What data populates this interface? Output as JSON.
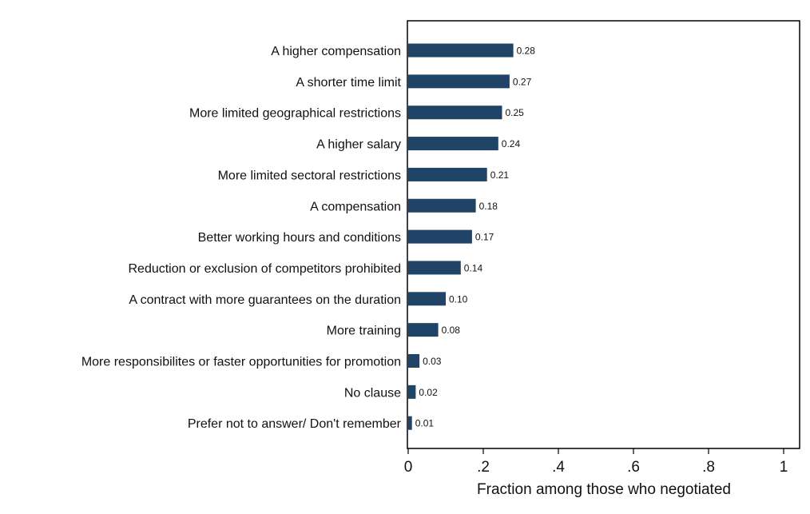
{
  "chart_data": {
    "type": "bar",
    "orientation": "horizontal",
    "categories": [
      "A higher compensation",
      "A shorter time limit",
      "More limited geographical restrictions",
      "A higher salary",
      "More limited sectoral restrictions",
      "A compensation",
      "Better working hours and conditions",
      "Reduction or exclusion of competitors prohibited",
      "A contract with more guarantees on the duration",
      "More training",
      "More responsibilites or faster opportunities for promotion",
      "No clause",
      "Prefer not to answer/ Don't remember"
    ],
    "values": [
      0.28,
      0.27,
      0.25,
      0.24,
      0.21,
      0.18,
      0.17,
      0.14,
      0.1,
      0.08,
      0.03,
      0.02,
      0.01
    ],
    "value_labels": [
      "0.28",
      "0.27",
      "0.25",
      "0.24",
      "0.21",
      "0.18",
      "0.17",
      "0.14",
      "0.10",
      "0.08",
      "0.03",
      "0.02",
      "0.01"
    ],
    "xlabel": "Fraction among those who negotiated",
    "xlim": [
      0,
      1
    ],
    "xticks": [
      0,
      0.2,
      0.4,
      0.6,
      0.8,
      1
    ],
    "xtick_labels": [
      "0",
      ".2",
      ".4",
      ".6",
      ".8",
      "1"
    ],
    "bar_color": "#1f4468",
    "grid": false,
    "legend": "none"
  }
}
